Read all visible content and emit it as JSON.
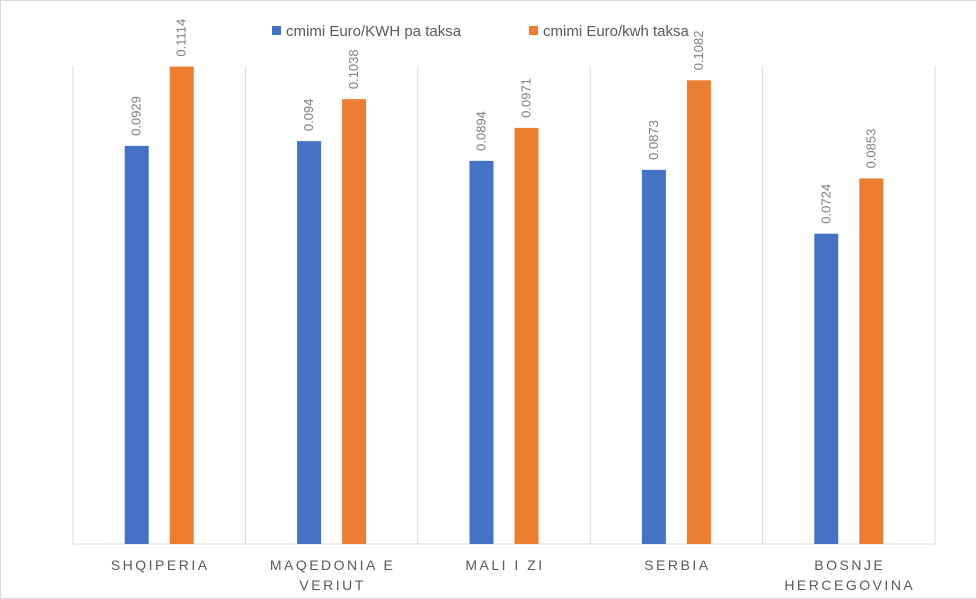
{
  "chart_data": {
    "type": "bar",
    "categories": [
      [
        "SHQIPERIA"
      ],
      [
        "MAQEDONIA E",
        "VERIUT"
      ],
      [
        "MALI I ZI"
      ],
      [
        "SERBIA"
      ],
      [
        "BOSNJE",
        "HERCEGOVINA"
      ]
    ],
    "series": [
      {
        "name": "cmimi  Euro/KWH pa taksa",
        "color": "#4472c4",
        "values": [
          0.0929,
          0.094,
          0.0894,
          0.0873,
          0.0724
        ],
        "labels": [
          "0.0929",
          "0.094",
          "0.0894",
          "0.0873",
          "0.0724"
        ]
      },
      {
        "name": "cmimi Euro/kwh taksa",
        "color": "#ed7d31",
        "values": [
          0.1114,
          0.1038,
          0.0971,
          0.1082,
          0.0853
        ],
        "labels": [
          "0.1114",
          "0.1038",
          "0.0971",
          "0.1082",
          "0.0853"
        ]
      }
    ],
    "ylim": [
      0,
      0.1245
    ],
    "legend": "top",
    "grid": "vertical-category-separators"
  }
}
